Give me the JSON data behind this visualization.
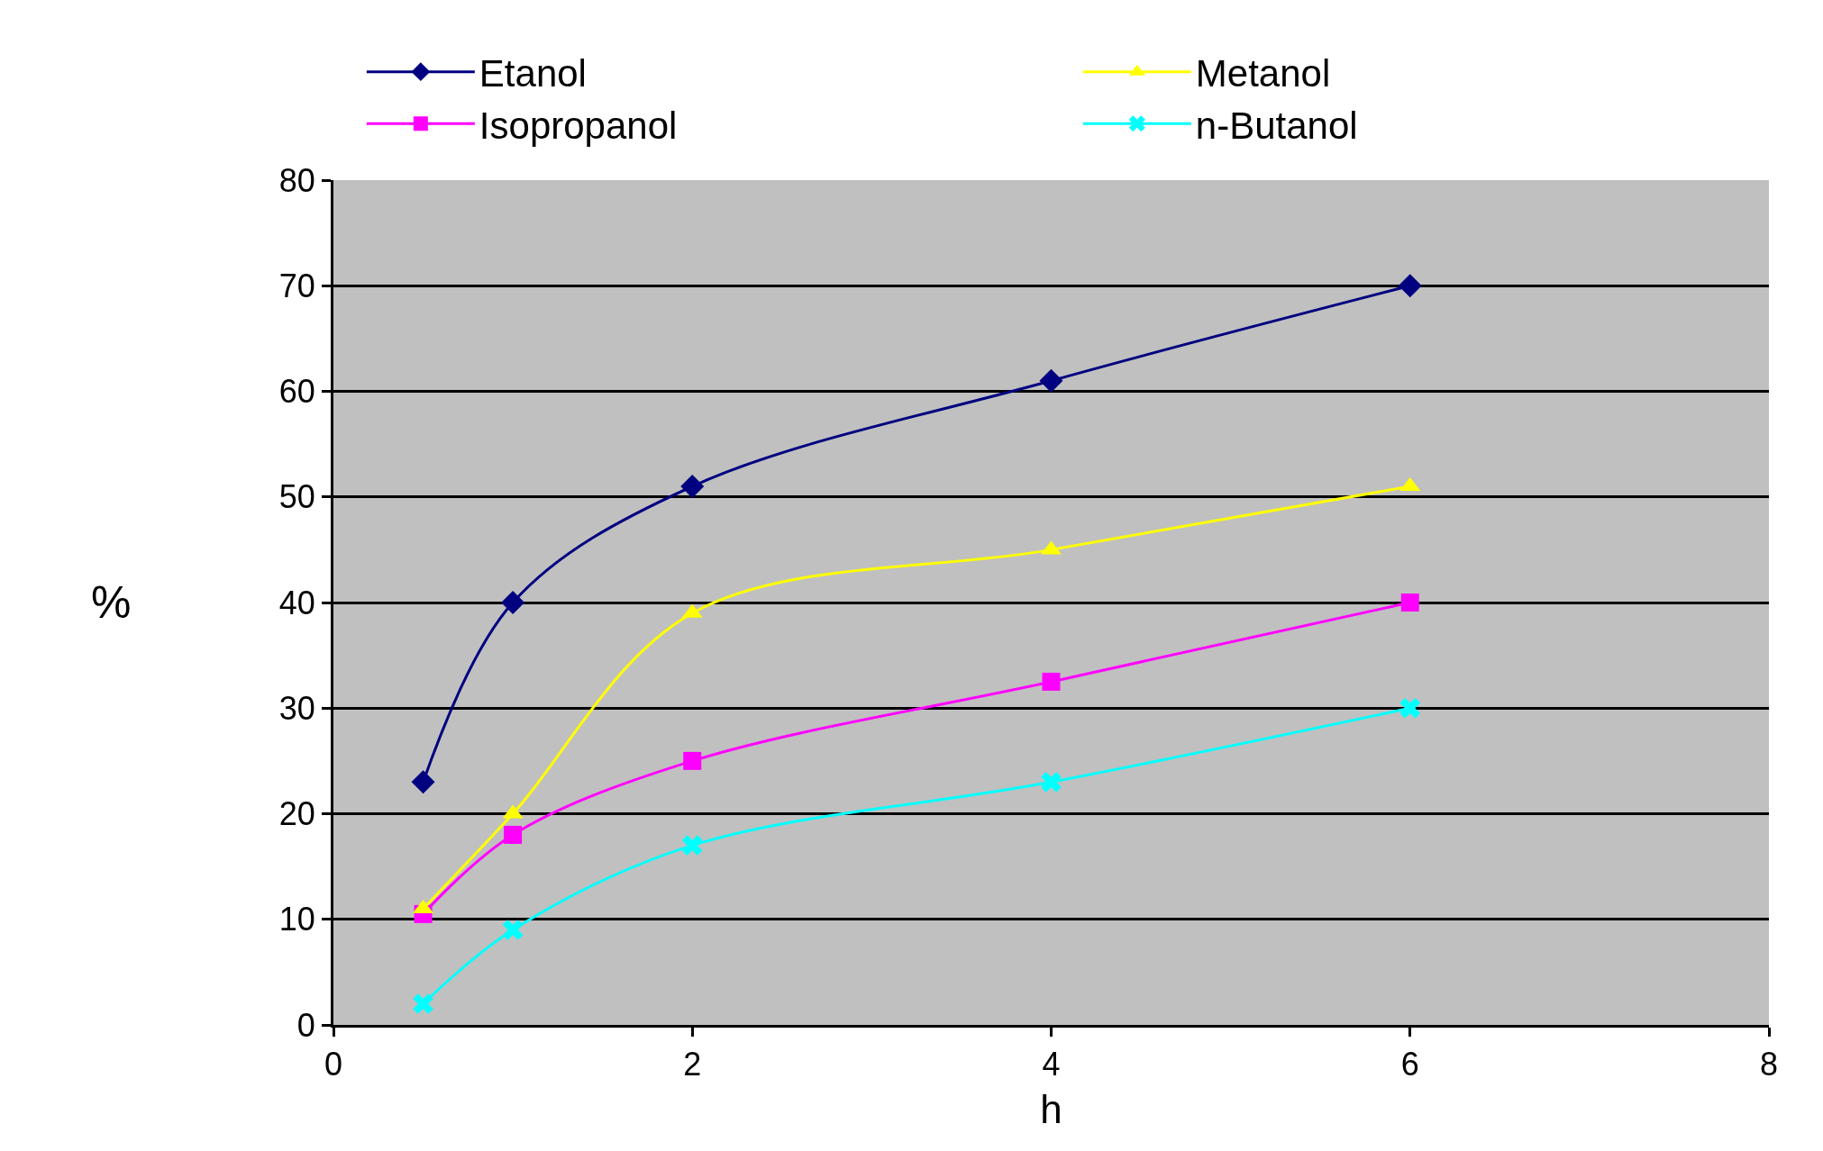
{
  "chart_data": {
    "type": "line",
    "xlabel": "h",
    "ylabel": "%",
    "x": [
      0.5,
      1,
      2,
      4,
      6
    ],
    "series": [
      {
        "name": "Etanol",
        "color": "#000080",
        "marker": "diamond",
        "values": [
          23,
          40,
          51,
          61,
          70
        ]
      },
      {
        "name": "Metanol",
        "color": "#ffff00",
        "marker": "triangle",
        "values": [
          11,
          20,
          39,
          45,
          51
        ]
      },
      {
        "name": "Isopropanol",
        "color": "#ff00ff",
        "marker": "square",
        "values": [
          10.5,
          18,
          25,
          32.5,
          40
        ]
      },
      {
        "name": "n-Butanol",
        "color": "#00ffff",
        "marker": "cross",
        "values": [
          2,
          9,
          17,
          23,
          30
        ]
      }
    ],
    "xlim": [
      0,
      8
    ],
    "xticks": [
      0,
      2,
      4,
      6,
      8
    ],
    "ylim": [
      0,
      80
    ],
    "yticks": [
      0,
      10,
      20,
      30,
      40,
      50,
      60,
      70,
      80
    ],
    "grid": "y",
    "legend": "top",
    "line_style": "solid"
  }
}
